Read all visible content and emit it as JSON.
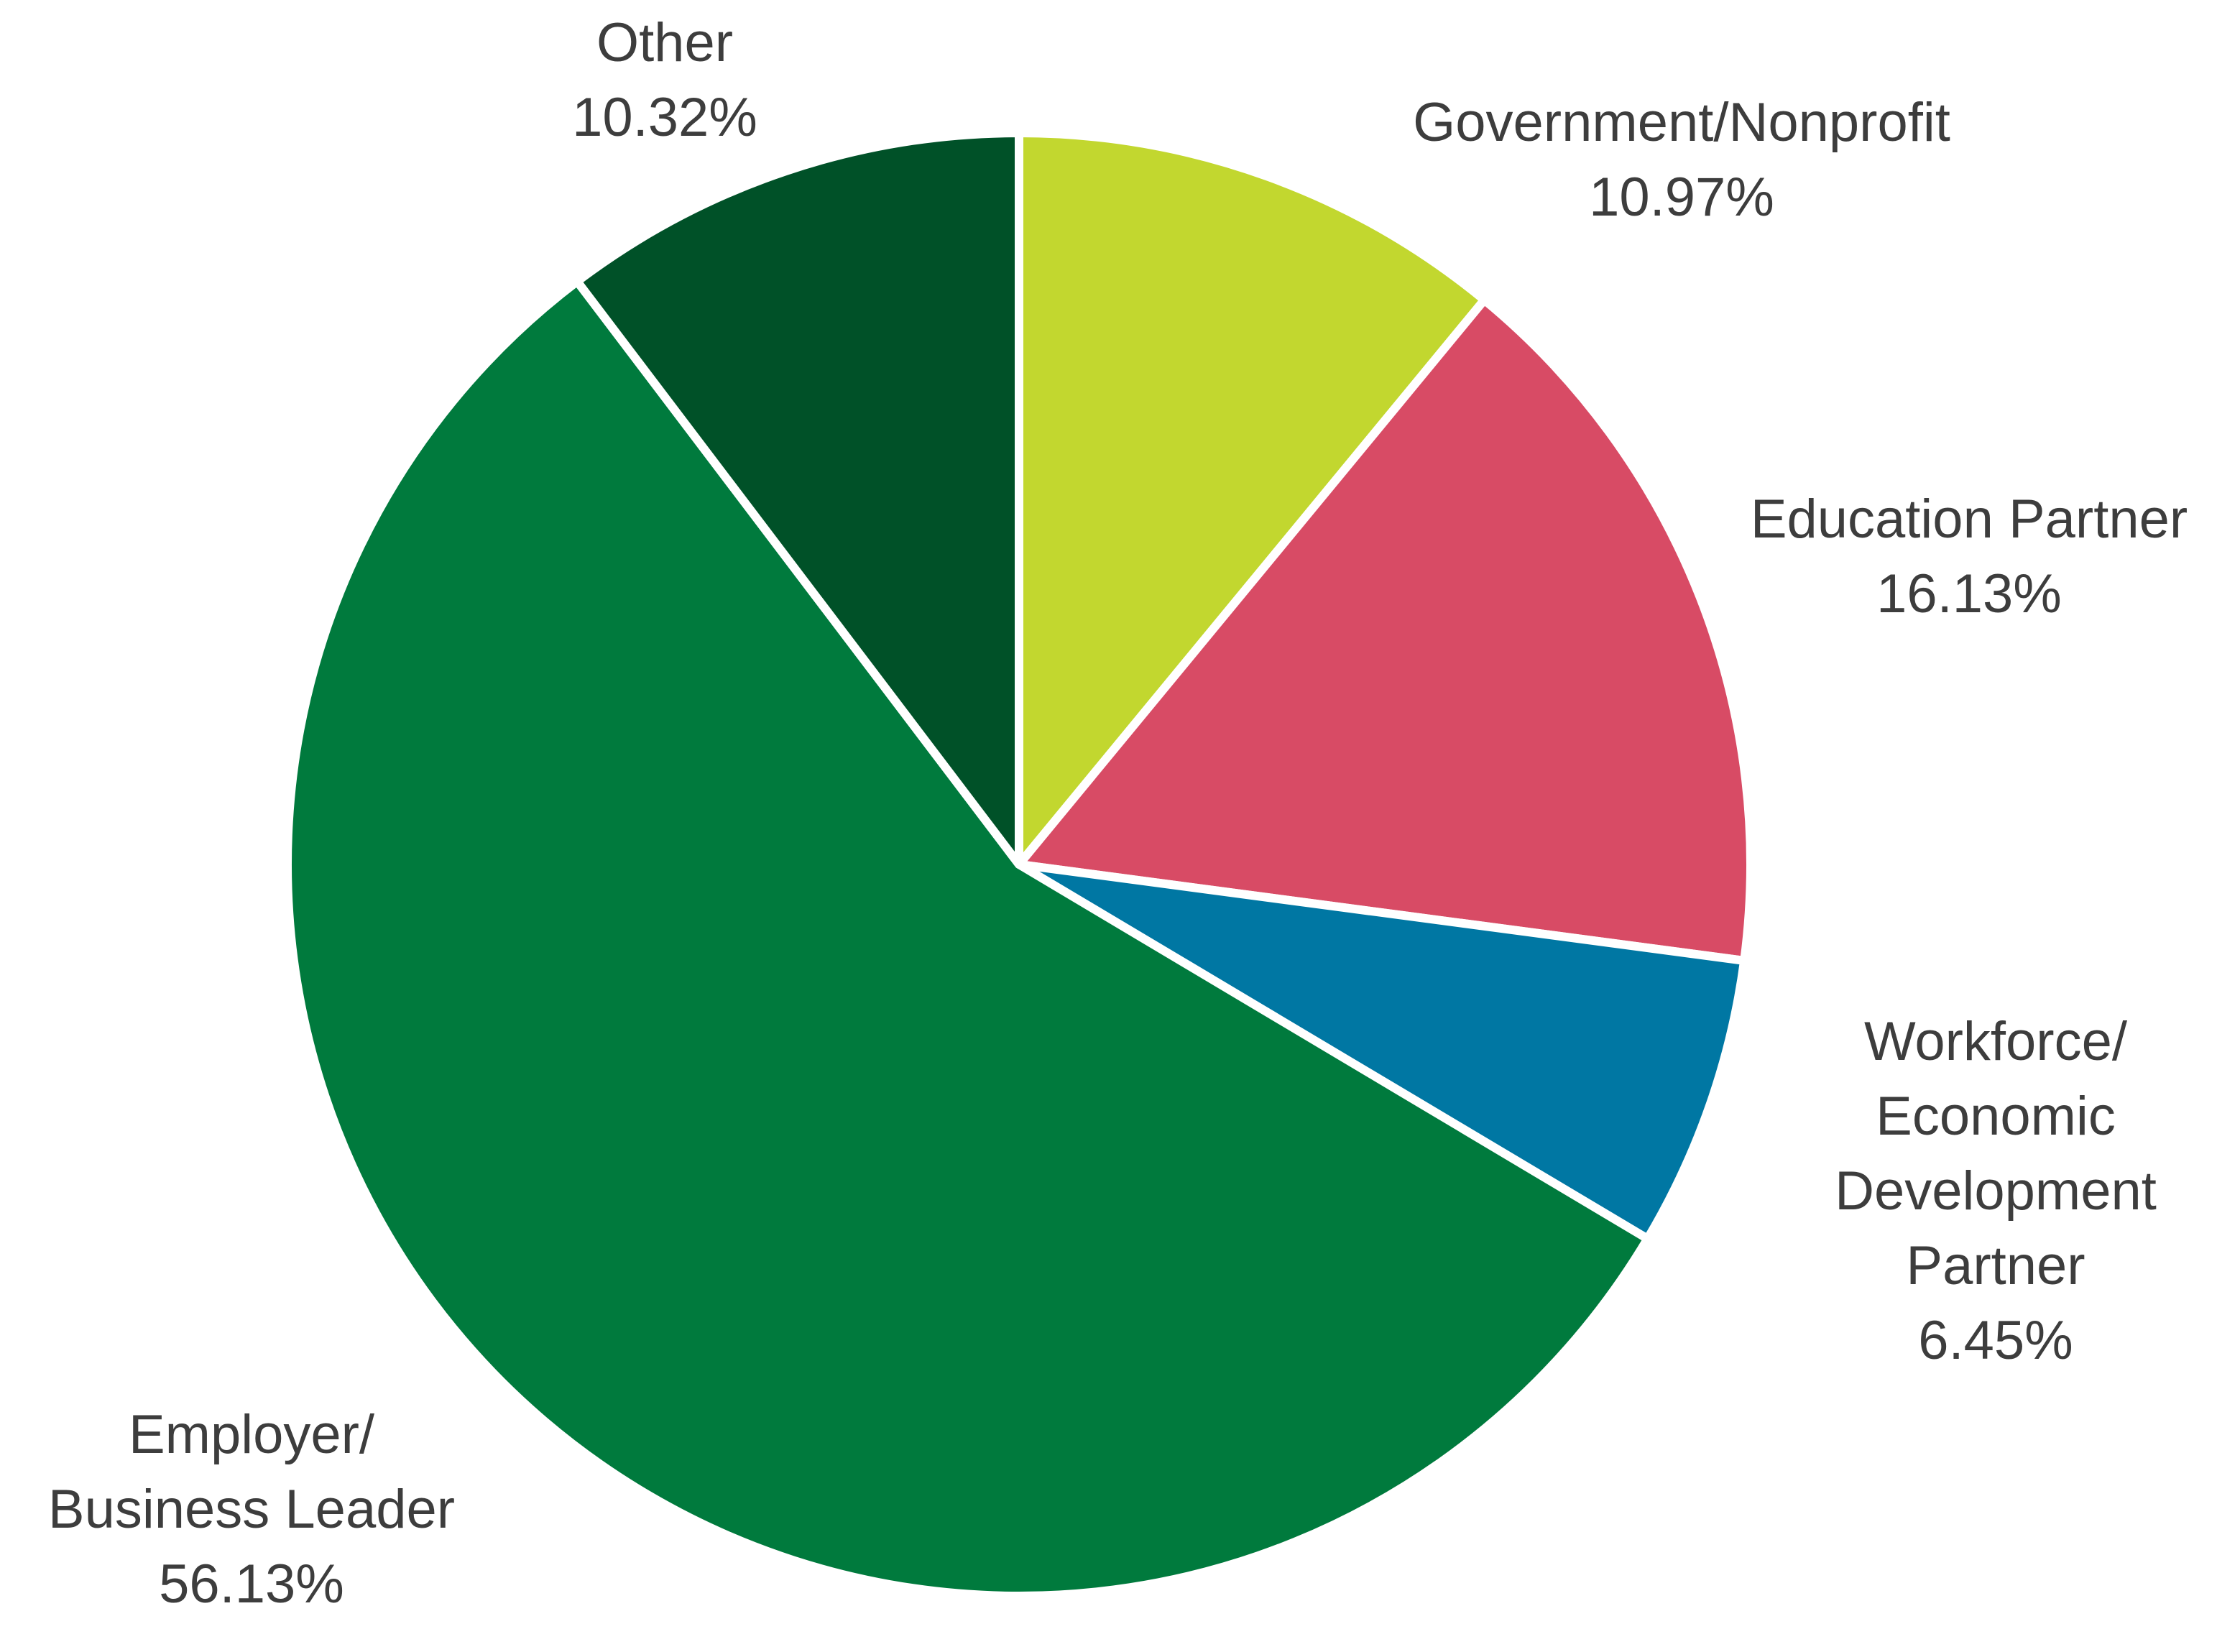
{
  "chart_data": {
    "type": "pie",
    "title": "",
    "start_angle_deg": 0,
    "direction": "clockwise",
    "slices": [
      {
        "name": "Government/Nonprofit",
        "label_lines": [
          "Government/Nonprofit"
        ],
        "value": 10.97,
        "value_label": "10.97%",
        "color": "#c2d72f"
      },
      {
        "name": "Education Partner",
        "label_lines": [
          "Education Partner"
        ],
        "value": 16.13,
        "value_label": "16.13%",
        "color": "#d84b65"
      },
      {
        "name": "Workforce/ Economic Development Partner",
        "label_lines": [
          "Workforce/",
          "Economic",
          "Development",
          "Partner"
        ],
        "value": 6.45,
        "value_label": "6.45%",
        "color": "#0077a3"
      },
      {
        "name": "Employer/ Business Leader",
        "label_lines": [
          "Employer/",
          "Business Leader"
        ],
        "value": 56.13,
        "value_label": "56.13%",
        "color": "#007a3d"
      },
      {
        "name": "Other",
        "label_lines": [
          "Other"
        ],
        "value": 10.32,
        "value_label": "10.32%",
        "color": "#005128"
      }
    ]
  }
}
